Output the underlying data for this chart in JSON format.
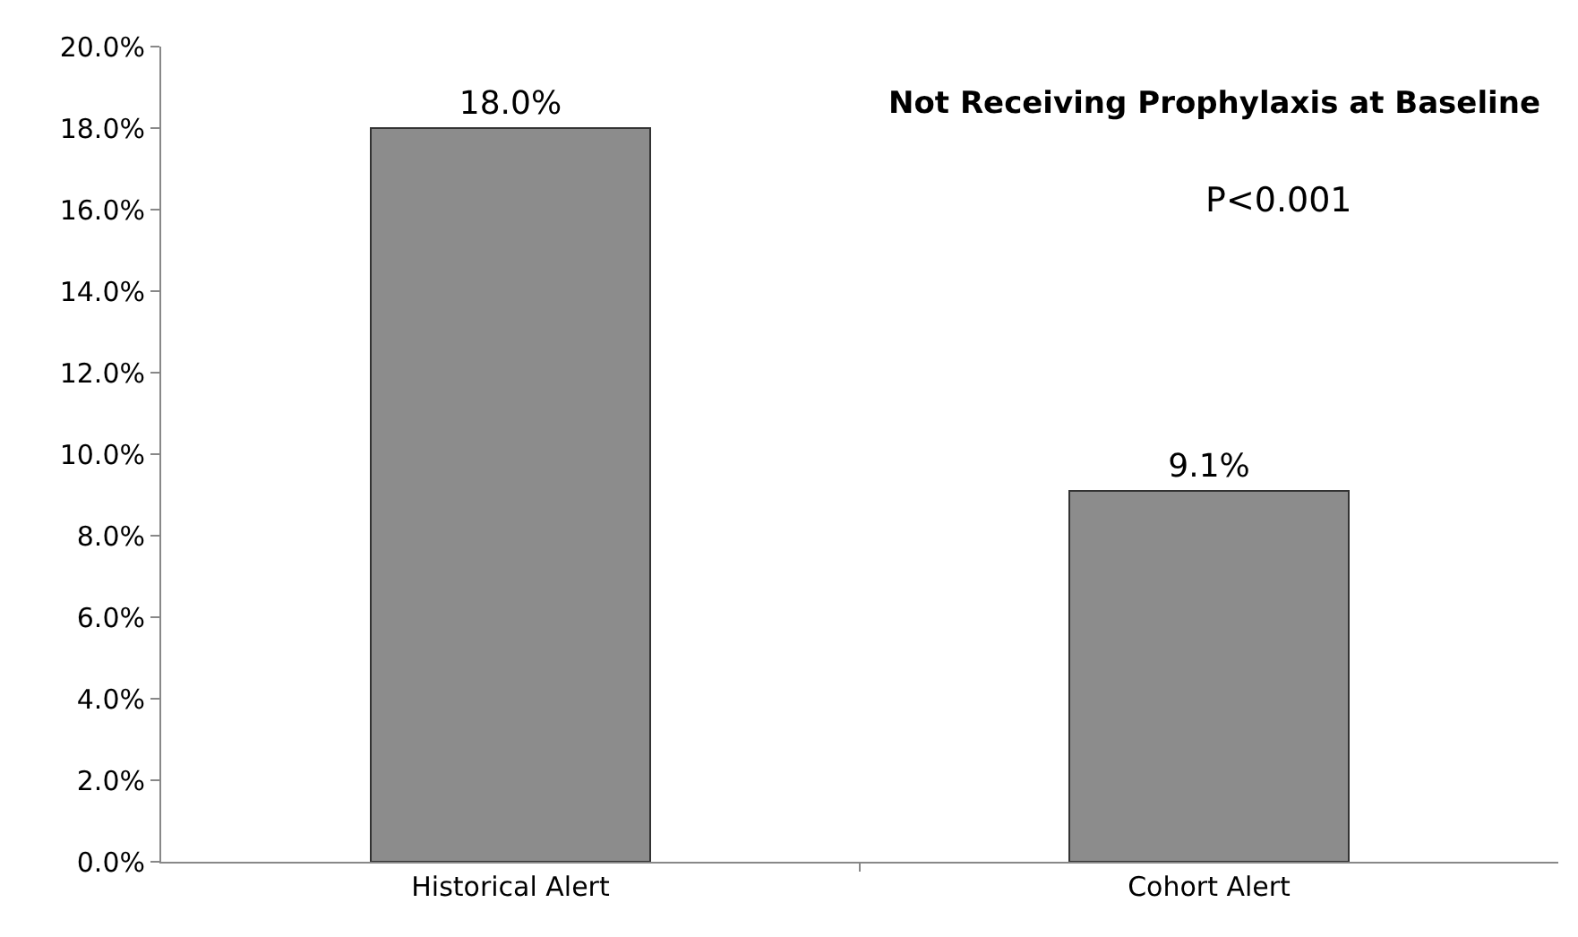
{
  "chart_data": {
    "type": "bar",
    "title": "Not Receiving Prophylaxis at Baseline",
    "categories": [
      "Historical Alert",
      "Cohort Alert"
    ],
    "values": [
      18.0,
      9.1
    ],
    "color": "#8c8c8c",
    "value_labels": [
      "18.0%",
      "9.1%"
    ],
    "ylim": [
      0,
      20
    ],
    "yticks": [
      {
        "value": 0,
        "label": "0.0%"
      },
      {
        "value": 2,
        "label": "2.0%"
      },
      {
        "value": 4,
        "label": "4.0%"
      },
      {
        "value": 6,
        "label": "6.0%"
      },
      {
        "value": 8,
        "label": "8.0%"
      },
      {
        "value": 10,
        "label": "10.0%"
      },
      {
        "value": 12,
        "label": "12.0%"
      },
      {
        "value": 14,
        "label": "14.0%"
      },
      {
        "value": 16,
        "label": "16.0%"
      },
      {
        "value": 18,
        "label": "18.0%"
      },
      {
        "value": 20,
        "label": "20.0%"
      }
    ],
    "annotations": [
      "P<0.001"
    ],
    "legend": false
  }
}
